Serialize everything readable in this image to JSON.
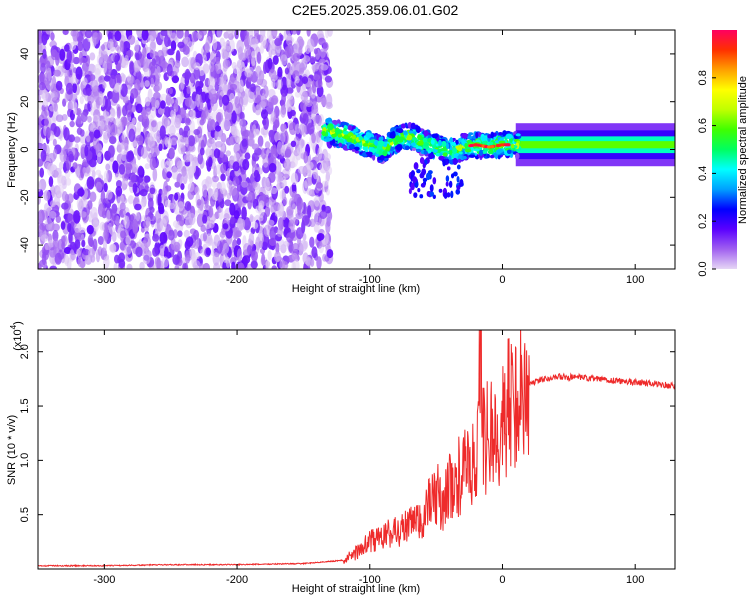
{
  "title": "C2E5.2025.359.06.01.G02",
  "chart_data": [
    {
      "type": "heatmap",
      "xlabel": "Height of straight line (km)",
      "ylabel": "Frequency (Hz)",
      "xlim": [
        -350,
        130
      ],
      "ylim": [
        -50,
        50
      ],
      "xticks": [
        -300,
        -200,
        -100,
        0,
        100
      ],
      "yticks": [
        -40,
        -20,
        0,
        20,
        40
      ],
      "noise_region": [
        -350,
        -130
      ],
      "signal_track": {
        "x": [
          -135,
          -120,
          -100,
          -90,
          -80,
          -70,
          -60,
          -50,
          -40,
          -30,
          -20,
          -10,
          0,
          10,
          50,
          100,
          130
        ],
        "y": [
          8,
          6,
          2,
          0,
          4,
          6,
          3,
          1,
          -1,
          1,
          2,
          1,
          2,
          2,
          2,
          2,
          2
        ]
      },
      "colorbar": {
        "label": "Normalized spectral amplitude",
        "range": [
          0.0,
          1.0
        ],
        "ticks": [
          "0.0",
          "0.2",
          "0.4",
          "0.6",
          "0.8"
        ],
        "colors": [
          "#e6d6f5",
          "#a060f0",
          "#5a00ff",
          "#0000ff",
          "#00a0ff",
          "#00ffff",
          "#00ff60",
          "#40ff00",
          "#c0ff00",
          "#ffff00",
          "#ffa000",
          "#ff3000",
          "#ff0060"
        ]
      }
    },
    {
      "type": "line",
      "xlabel": "Height of straight line (km)",
      "ylabel": "SNR (10 * v/v)",
      "multiplier": "(x10",
      "multiplier_exp": "4",
      "xlim": [
        -350,
        130
      ],
      "ylim": [
        0,
        2.2
      ],
      "xticks": [
        -300,
        -200,
        -100,
        0,
        100
      ],
      "yticks": [
        "0.5",
        "1.0",
        "1.5",
        "2.0"
      ],
      "color": "#ee2a2a",
      "series": [
        {
          "name": "SNR",
          "x": [
            -350,
            -300,
            -250,
            -200,
            -150,
            -120,
            -110,
            -100,
            -90,
            -80,
            -70,
            -60,
            -55,
            -50,
            -45,
            -40,
            -35,
            -30,
            -25,
            -20,
            -17,
            -15,
            -10,
            -5,
            0,
            5,
            10,
            15,
            20,
            30,
            40,
            60,
            80,
            100,
            120,
            130
          ],
          "y": [
            0.03,
            0.03,
            0.04,
            0.04,
            0.05,
            0.08,
            0.15,
            0.25,
            0.3,
            0.35,
            0.4,
            0.45,
            0.6,
            0.7,
            0.6,
            0.75,
            0.8,
            0.9,
            0.95,
            0.9,
            2.2,
            1.2,
            1.2,
            1.3,
            1.35,
            1.5,
            1.6,
            1.65,
            1.7,
            1.75,
            1.77,
            1.76,
            1.74,
            1.72,
            1.7,
            1.68
          ]
        }
      ]
    }
  ]
}
